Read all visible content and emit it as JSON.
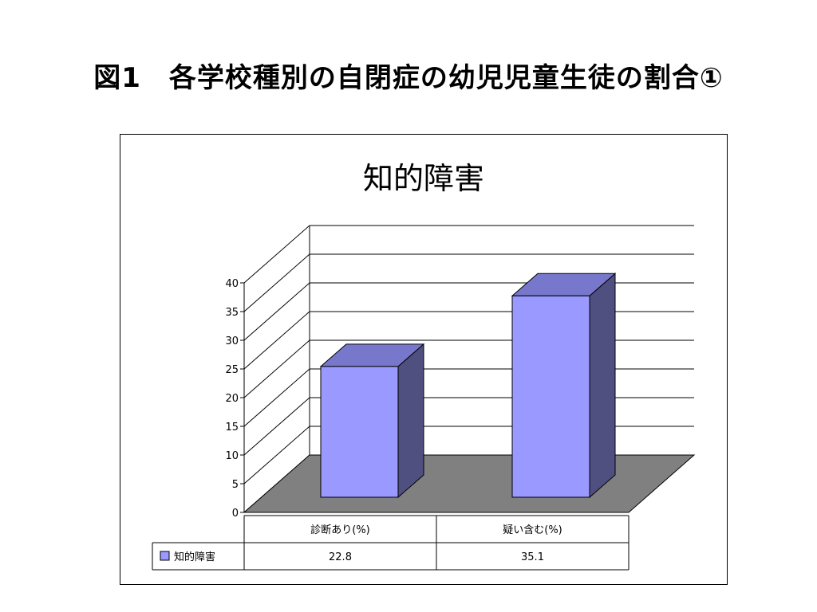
{
  "slide": {
    "title": "図1　各学校種別の自閉症の幼児児童生徒の割合①"
  },
  "chart_data": {
    "type": "bar",
    "title": "知的障害",
    "categories": [
      "診断あり(%)",
      "疑い含む(%)"
    ],
    "series": [
      {
        "name": "知的障害",
        "values": [
          22.8,
          35.1
        ],
        "color": "#9999ff"
      }
    ],
    "ylim": [
      0,
      40
    ],
    "yticks": [
      0,
      5,
      10,
      15,
      20,
      25,
      30,
      35,
      40
    ],
    "ytick_labels": [
      "0",
      "5",
      "10",
      "15",
      "20",
      "25",
      "30",
      "35",
      "40"
    ],
    "value_labels": [
      "22.8",
      "35.1"
    ],
    "legend_placement": "data-table",
    "grid": true,
    "three_d": true,
    "colors": {
      "bar_front": "#9999ff",
      "bar_top": "#7777cc",
      "bar_side": "#505080",
      "floor": "#808080"
    }
  }
}
